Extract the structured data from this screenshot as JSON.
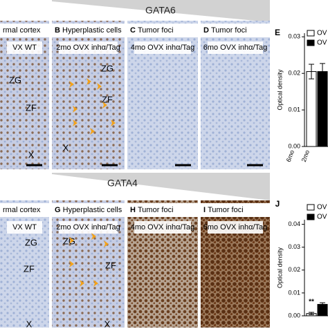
{
  "rows": [
    {
      "gene": "GATA6",
      "panels": [
        {
          "title": "rmal cortex",
          "subtitle": "VX WT",
          "labels": [
            "ZG",
            "ZF",
            "X"
          ]
        },
        {
          "letter": "B",
          "title": "Hyperplastic cells",
          "subtitle": "2mo OVX inhα/Tag",
          "labels": [
            "ZG",
            "ZF",
            "X"
          ]
        },
        {
          "letter": "C",
          "title": "Tumor foci",
          "subtitle": "4mo OVX inhα/Tag"
        },
        {
          "letter": "D",
          "title": "Tumor foci",
          "subtitle": "6mo OVX inhα/Tag"
        }
      ]
    },
    {
      "gene": "GATA4",
      "panels": [
        {
          "title": "rmal cortex",
          "subtitle": "VX WT",
          "labels": [
            "ZG",
            "ZF",
            "X"
          ]
        },
        {
          "letter": "G",
          "title": "Hyperplastic cells",
          "subtitle": "2mo OVX inhα/Tag",
          "labels": [
            "ZG",
            "ZF",
            "X"
          ]
        },
        {
          "letter": "H",
          "title": "Tumor foci",
          "subtitle": "4mo OVX inhα/Tag"
        },
        {
          "letter": "I",
          "title": "Tumor foci",
          "subtitle": "6mo OVX inhα/Tag"
        }
      ]
    }
  ],
  "charts": [
    {
      "type": "bar",
      "letter": "E",
      "y_label": "Optical density",
      "categories": [
        "6mo",
        "2mo"
      ],
      "series": [
        {
          "name": "OV",
          "color": "#ffffff",
          "values": [
            0.0205,
            null
          ],
          "errors": [
            0.002,
            null
          ]
        },
        {
          "name": "OV",
          "color": "#000000",
          "values": [
            null,
            0.0205
          ],
          "errors": [
            null,
            0.0022
          ]
        }
      ],
      "ylim": [
        0,
        0.031
      ],
      "yticks": [
        {
          "value": 0,
          "label": "0.00"
        },
        {
          "value": 0.01,
          "label": "0.01"
        },
        {
          "value": 0.02,
          "label": "0.02"
        },
        {
          "value": 0.03,
          "label": "0.03"
        }
      ]
    },
    {
      "type": "bar",
      "letter": "J",
      "y_label": "Optical density",
      "annotation": "**",
      "series": [
        {
          "name": "OV",
          "color": "#ffffff",
          "values": [
            0.001
          ],
          "errors": [
            0.0005
          ]
        },
        {
          "name": "OV",
          "color": "#000000",
          "values": [
            0.005
          ],
          "errors": [
            0.0007
          ]
        }
      ],
      "ylim": [
        0,
        0.042
      ],
      "yticks": [
        {
          "value": 0,
          "label": "0.00"
        },
        {
          "value": 0.01,
          "label": "0.01"
        },
        {
          "value": 0.02,
          "label": "0.02"
        },
        {
          "value": 0.03,
          "label": "0.03"
        },
        {
          "value": 0.04,
          "label": "0.04"
        }
      ]
    }
  ]
}
